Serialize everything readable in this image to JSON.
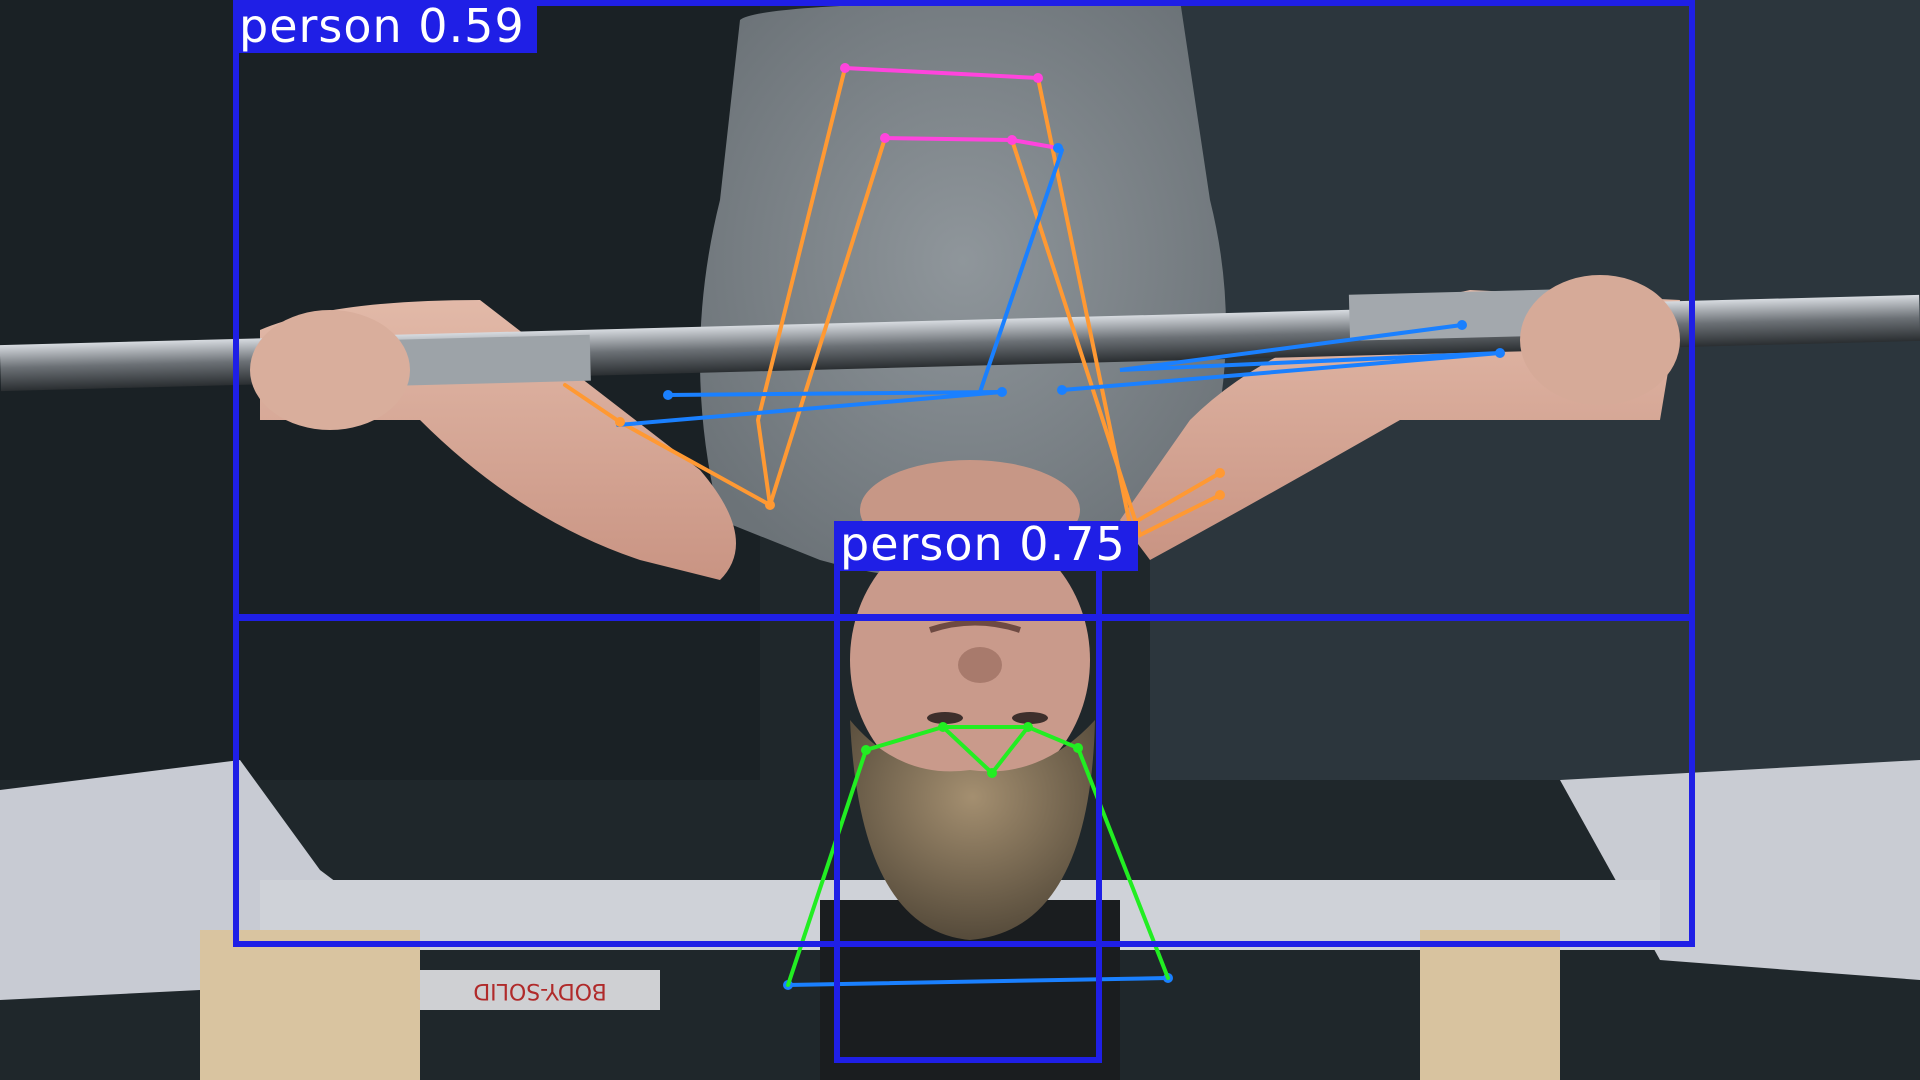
{
  "detections": [
    {
      "label": "person 0.59",
      "box_color": "#1f1fe6"
    },
    {
      "label": "person 0.75",
      "box_color": "#1f1fe6"
    }
  ],
  "colors": {
    "box": "#1f1fe6",
    "limb_orange": "#ff9933",
    "limb_blue": "#1a80ff",
    "face_magenta": "#ff44dd",
    "face_green": "#22ee22"
  },
  "equipment": {
    "bench_plate_text": "BODY-SOLID"
  }
}
